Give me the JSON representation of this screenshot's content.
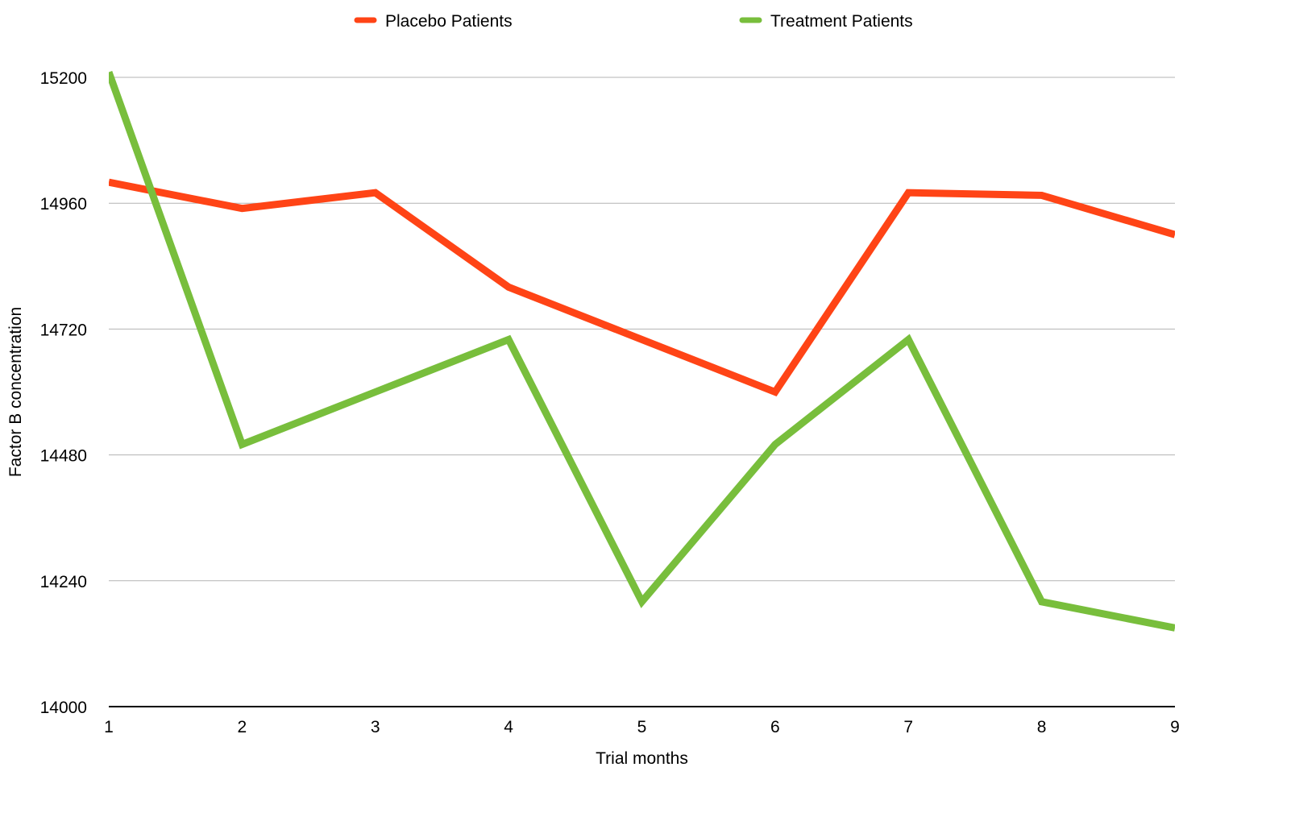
{
  "chart_data": {
    "type": "line",
    "title": "",
    "xlabel": "Trial months",
    "ylabel": "Factor B concentration",
    "x": [
      1,
      2,
      3,
      4,
      5,
      6,
      7,
      8,
      9
    ],
    "x_tick_labels": [
      "1",
      "2",
      "3",
      "4",
      "5",
      "6",
      "7",
      "8",
      "9"
    ],
    "y_tick_labels": [
      "14000",
      "14240",
      "14480",
      "14720",
      "14960",
      "15200"
    ],
    "y_ticks": [
      14000,
      14240,
      14480,
      14720,
      14960,
      15200
    ],
    "xlim": [
      1,
      9
    ],
    "ylim": [
      14000,
      15200
    ],
    "grid": true,
    "legend_position": "top",
    "series": [
      {
        "name": "Placebo Patients",
        "color": "#ff4416",
        "values": [
          15000,
          14950,
          14980,
          14800,
          14700,
          14600,
          14980,
          14975,
          14900
        ]
      },
      {
        "name": "Treatment Patients",
        "color": "#78be3c",
        "values": [
          15210,
          14500,
          14600,
          14700,
          14200,
          14500,
          14700,
          14200,
          14150
        ]
      }
    ]
  }
}
